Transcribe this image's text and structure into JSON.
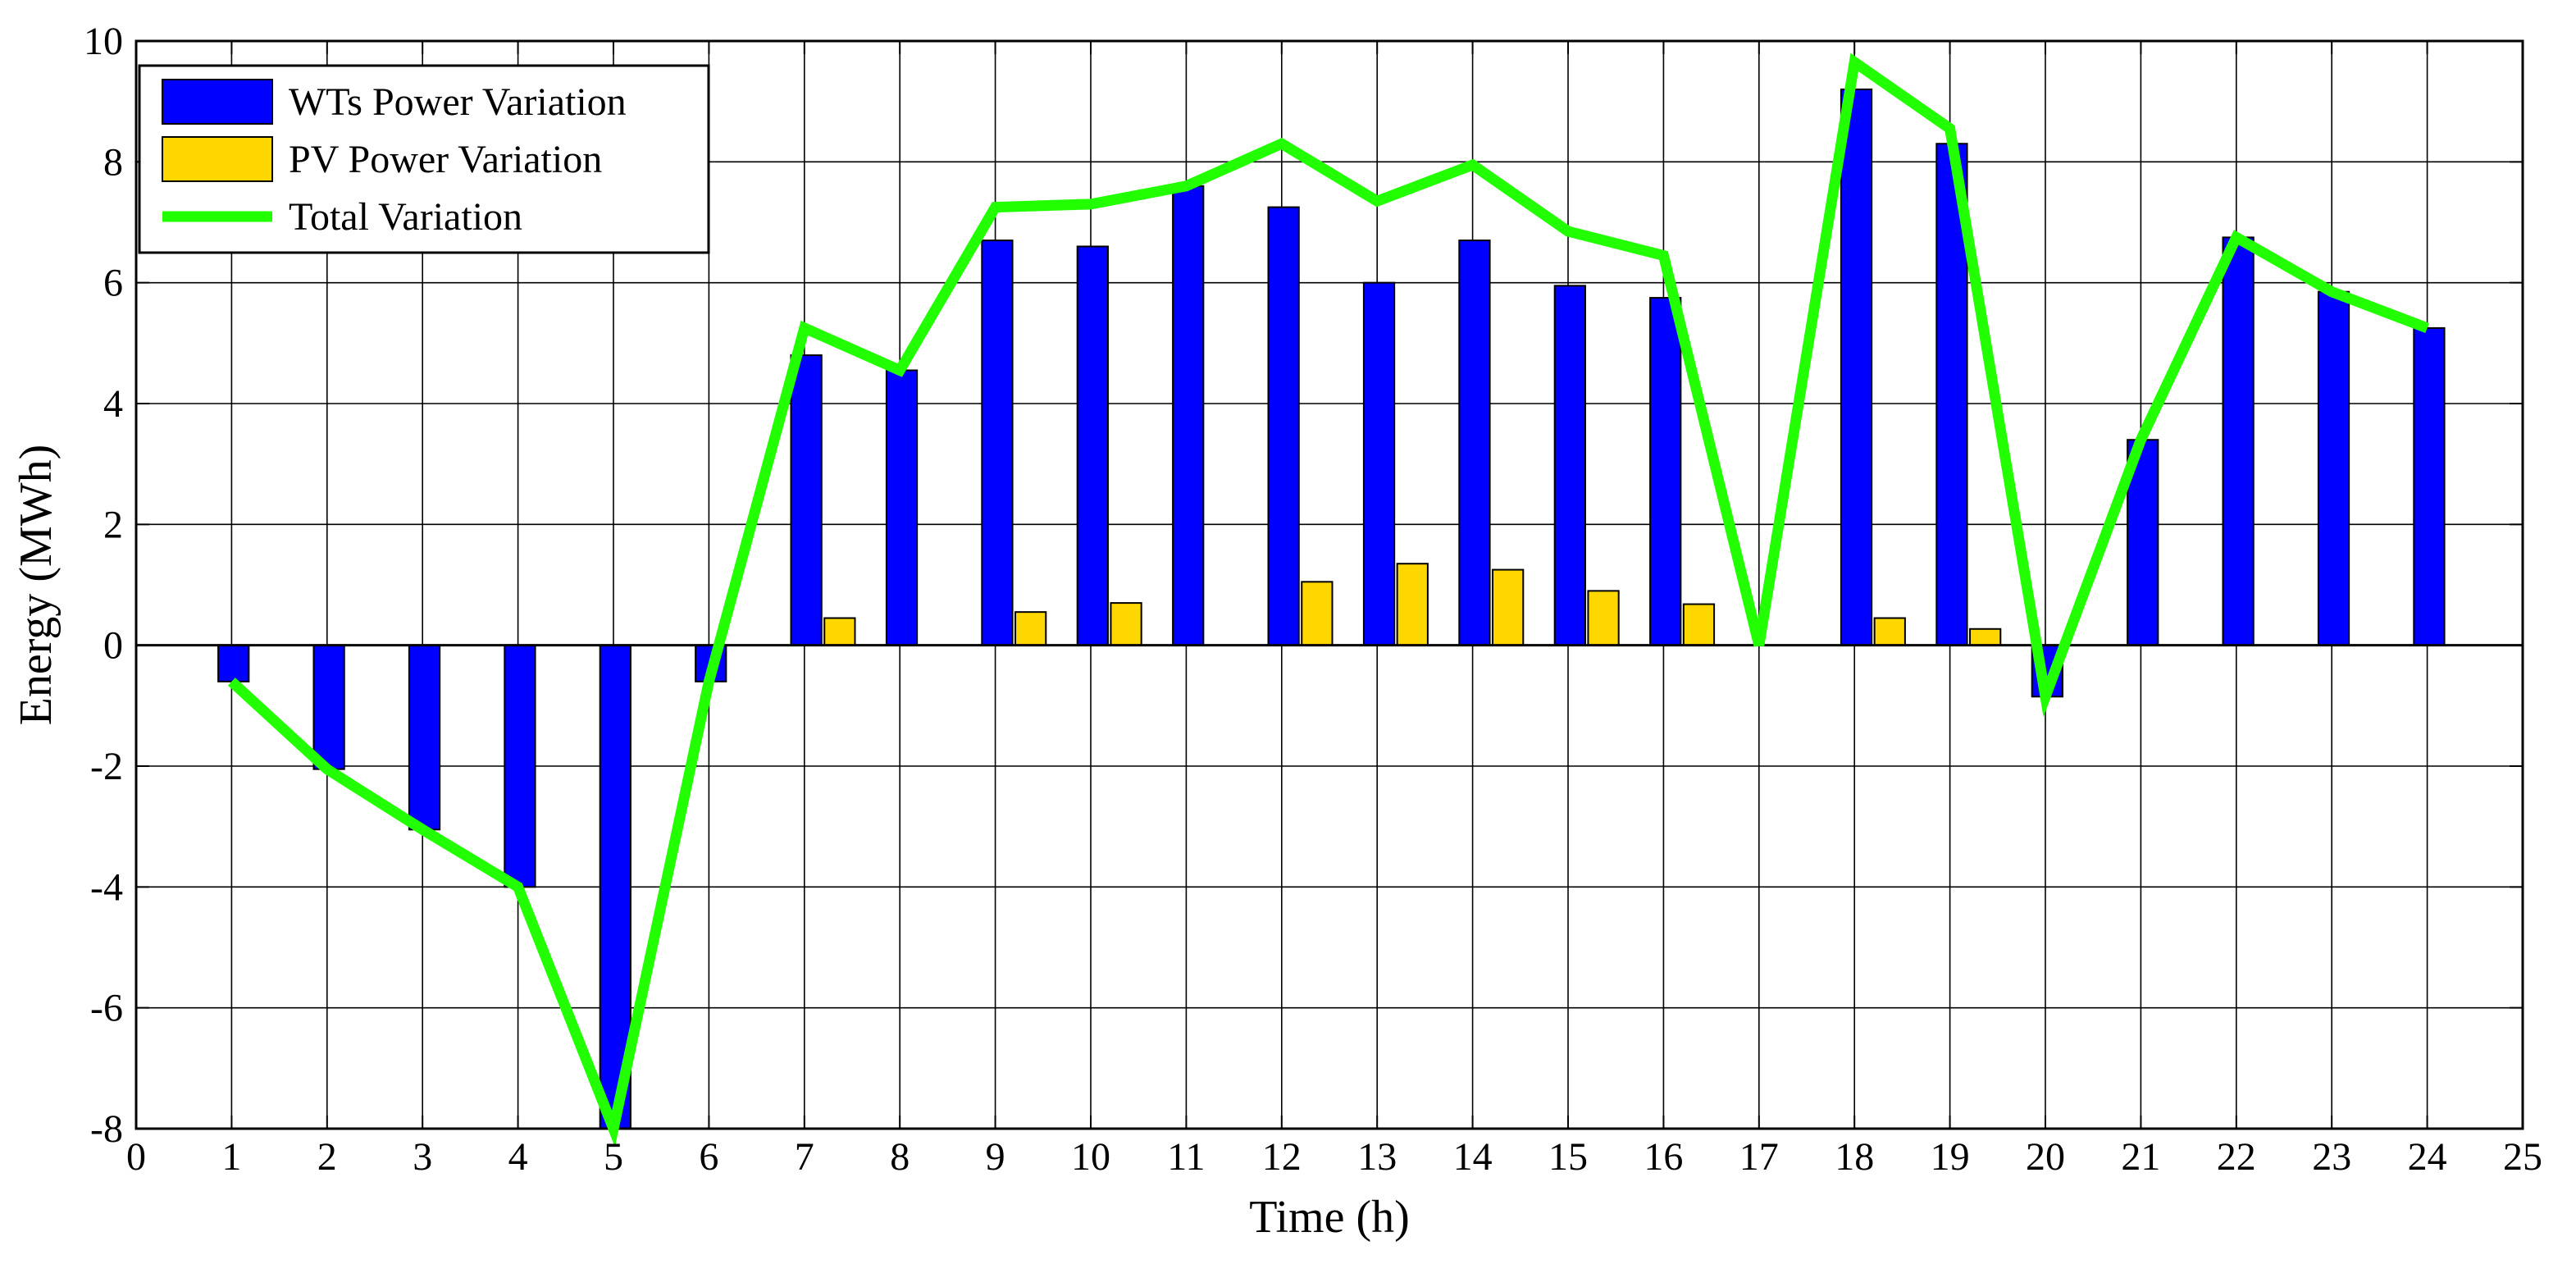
{
  "chart_data": {
    "type": "bar",
    "xlabel": "Time (h)",
    "ylabel": "Energy (MWh)",
    "xlim": [
      0,
      25
    ],
    "ylim": [
      -8,
      10
    ],
    "xticks": [
      0,
      1,
      2,
      3,
      4,
      5,
      6,
      7,
      8,
      9,
      10,
      11,
      12,
      13,
      14,
      15,
      16,
      17,
      18,
      19,
      20,
      21,
      22,
      23,
      24,
      25
    ],
    "yticks": [
      -8,
      -6,
      -4,
      -2,
      0,
      2,
      4,
      6,
      8,
      10
    ],
    "grid": true,
    "legend_position": "top-left",
    "categories": [
      1,
      2,
      3,
      4,
      5,
      6,
      7,
      8,
      9,
      10,
      11,
      12,
      13,
      14,
      15,
      16,
      17,
      18,
      19,
      20,
      21,
      22,
      23,
      24
    ],
    "series": [
      {
        "name": "WTs Power Variation",
        "kind": "bar",
        "color": "#0000ff",
        "values": [
          -0.6,
          -2.05,
          -3.05,
          -4.0,
          -8.0,
          -0.6,
          4.8,
          4.55,
          6.7,
          6.6,
          7.6,
          7.25,
          6.0,
          6.7,
          5.95,
          5.75,
          0,
          9.2,
          8.3,
          -0.85,
          3.4,
          6.75,
          5.85,
          5.25
        ]
      },
      {
        "name": "PV Power Variation",
        "kind": "bar",
        "color": "#ffd700",
        "values": [
          0,
          0,
          0,
          0,
          0,
          0,
          0.45,
          0,
          0.55,
          0.7,
          0,
          1.05,
          1.35,
          1.25,
          0.9,
          0.68,
          0,
          0.45,
          0.27,
          0,
          0,
          0,
          0,
          0
        ]
      },
      {
        "name": "Total Variation",
        "kind": "line",
        "color": "#22ff00",
        "values": [
          -0.6,
          -2.05,
          -3.05,
          -4.0,
          -8.0,
          -0.6,
          5.25,
          4.55,
          7.25,
          7.3,
          7.6,
          8.3,
          7.35,
          7.95,
          6.85,
          6.45,
          0,
          9.65,
          8.55,
          -0.85,
          3.4,
          6.75,
          5.85,
          5.25
        ]
      }
    ]
  }
}
